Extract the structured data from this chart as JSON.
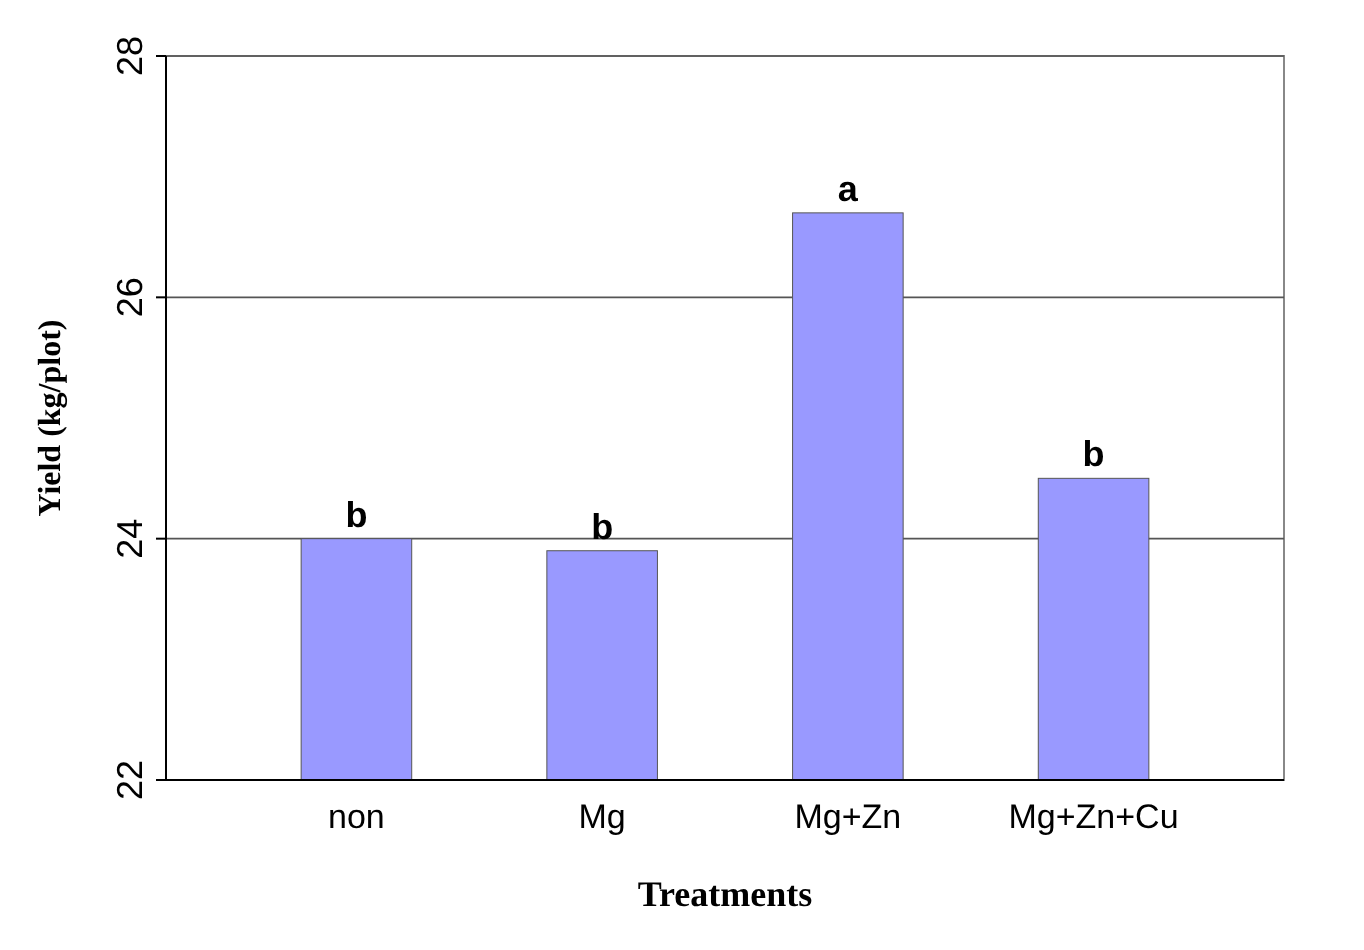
{
  "chart_data": {
    "type": "bar",
    "xlabel": "Treatments",
    "ylabel": "Yield (kg/plot)",
    "categories": [
      "non",
      "Mg",
      "Mg+Zn",
      "Mg+Zn+Cu"
    ],
    "values": [
      24.0,
      23.9,
      26.7,
      24.5
    ],
    "color": "#9999ff",
    "ylim": [
      22,
      28
    ],
    "yticks": [
      22,
      24,
      26,
      28
    ],
    "grid": "y",
    "annotations": [
      {
        "text": "b",
        "x": "non",
        "y": 24.0
      },
      {
        "text": "b",
        "x": "Mg",
        "y": 23.9
      },
      {
        "text": "a",
        "x": "Mg+Zn",
        "y": 26.7
      },
      {
        "text": "b",
        "x": "Mg+Zn+Cu",
        "y": 24.5
      }
    ]
  }
}
